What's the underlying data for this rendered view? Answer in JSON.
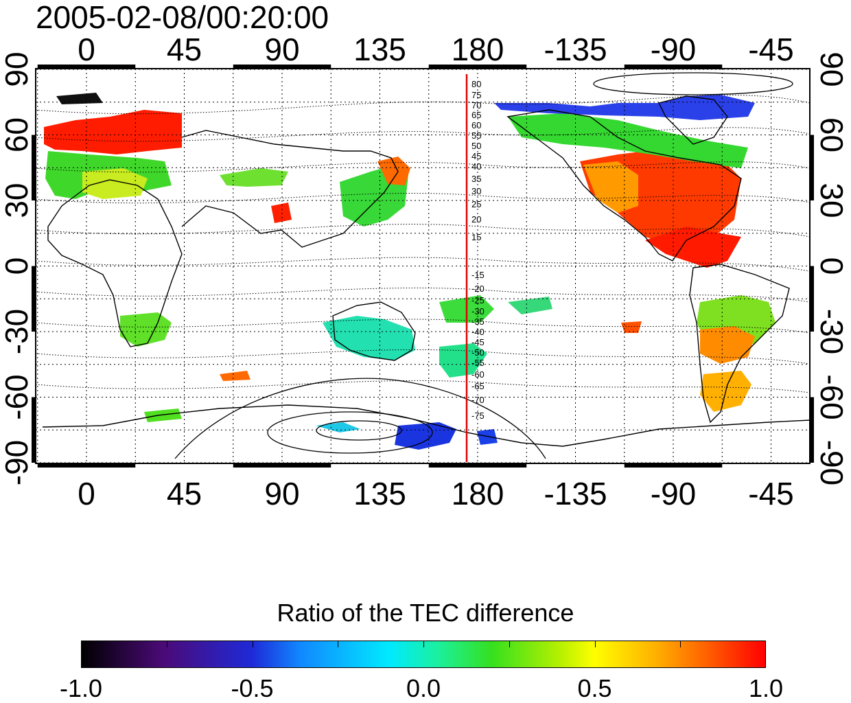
{
  "title": "2005-02-08/00:20:00",
  "map": {
    "top_lon_labels": [
      "0",
      "45",
      "90",
      "135",
      "180",
      "-135",
      "-90",
      "-45"
    ],
    "bottom_lon_labels": [
      "0",
      "45",
      "90",
      "135",
      "180",
      "-135",
      "-90",
      "-45"
    ],
    "left_lat_labels": [
      "90",
      "60",
      "30",
      "0",
      "-30",
      "-60",
      "-90"
    ],
    "right_lat_labels": [
      "90",
      "60",
      "30",
      "0",
      "-30",
      "-60",
      "-90"
    ],
    "meridian_line_color": "#e00000",
    "meridian_labels_north": [
      "80",
      "75",
      "70",
      "65",
      "60",
      "55",
      "50",
      "45",
      "40",
      "35",
      "30",
      "25",
      "20",
      "15"
    ],
    "meridian_labels_south": [
      "-15",
      "-20",
      "-25",
      "-30",
      "-35",
      "-40",
      "-45",
      "-50",
      "-55",
      "-60",
      "-65",
      "-70",
      "-75"
    ],
    "grid": true
  },
  "colorbar": {
    "title": "Ratio of the TEC difference",
    "ticks": [
      "-1.0",
      "-0.5",
      "0.0",
      "0.5",
      "1.0"
    ],
    "range": [
      -1.0,
      1.0
    ]
  }
}
